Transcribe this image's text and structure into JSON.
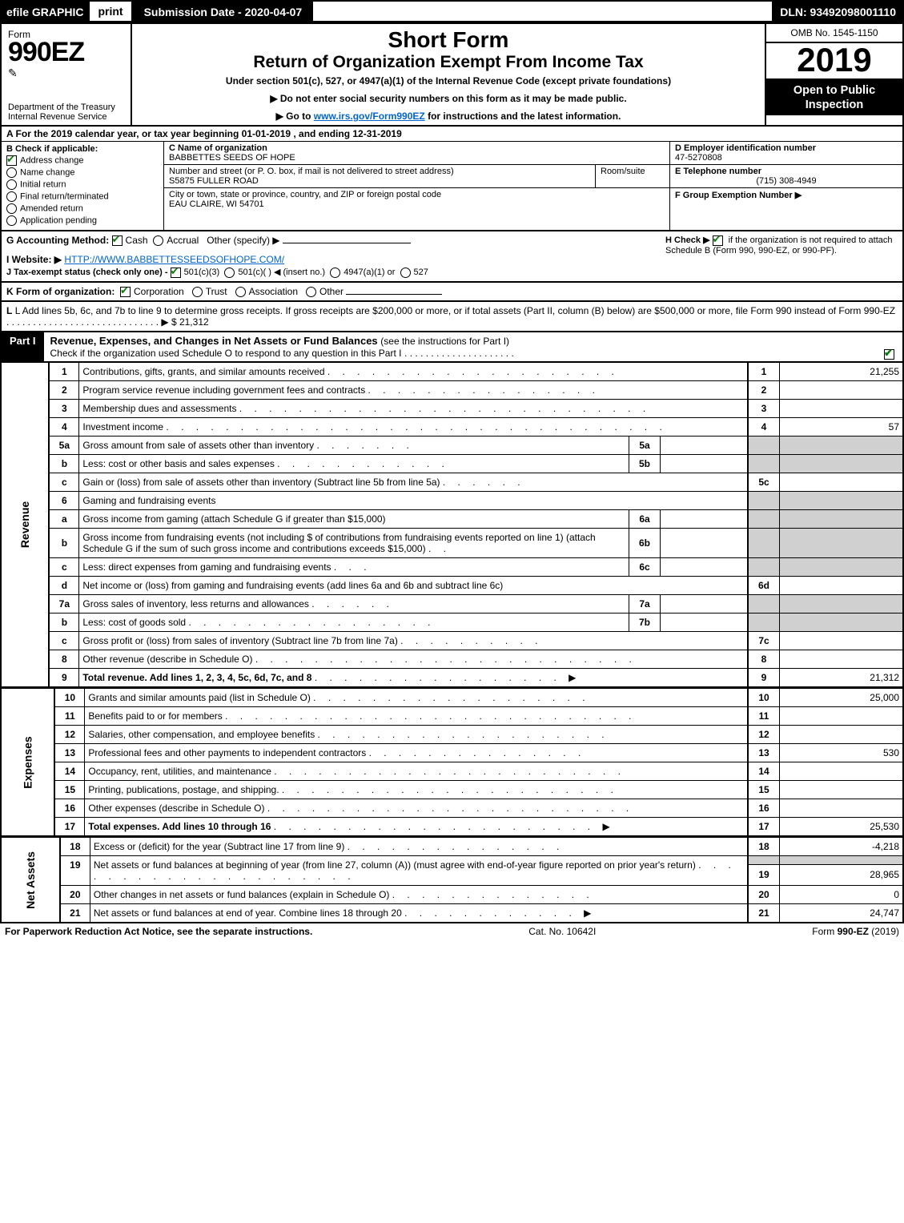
{
  "topbar": {
    "efile": "efile GRAPHIC",
    "print": "print",
    "subdate": "Submission Date - 2020-04-07",
    "dln": "DLN: 93492098001110"
  },
  "header": {
    "form_word": "Form",
    "form_num": "990EZ",
    "dept": "Department of the Treasury",
    "irs": "Internal Revenue Service",
    "title1": "Short Form",
    "title2": "Return of Organization Exempt From Income Tax",
    "subtitle": "Under section 501(c), 527, or 4947(a)(1) of the Internal Revenue Code (except private foundations)",
    "warn": "▶ Do not enter social security numbers on this form as it may be made public.",
    "goto_pre": "▶ Go to ",
    "goto_link": "www.irs.gov/Form990EZ",
    "goto_post": " for instructions and the latest information.",
    "omb": "OMB No. 1545-1150",
    "year": "2019",
    "open": "Open to Public Inspection"
  },
  "lineA": "A For the 2019 calendar year, or tax year beginning 01-01-2019 , and ending 12-31-2019",
  "boxB": {
    "title": "B Check if applicable:",
    "items": [
      {
        "label": "Address change",
        "checked": true,
        "type": "check"
      },
      {
        "label": "Name change",
        "checked": false,
        "type": "radio"
      },
      {
        "label": "Initial return",
        "checked": false,
        "type": "radio"
      },
      {
        "label": "Final return/terminated",
        "checked": false,
        "type": "radio"
      },
      {
        "label": "Amended return",
        "checked": false,
        "type": "radio"
      },
      {
        "label": "Application pending",
        "checked": false,
        "type": "radio"
      }
    ]
  },
  "boxC": {
    "c_label": "C Name of organization",
    "c_val": "BABBETTES SEEDS OF HOPE",
    "street_label": "Number and street (or P. O. box, if mail is not delivered to street address)",
    "street_val": "S5875 FULLER ROAD",
    "room_label": "Room/suite",
    "city_label": "City or town, state or province, country, and ZIP or foreign postal code",
    "city_val": "EAU CLAIRE, WI  54701"
  },
  "boxD": {
    "d_label": "D Employer identification number",
    "d_val": "47-5270808",
    "e_label": "E Telephone number",
    "e_val": "(715) 308-4949",
    "f_label": "F Group Exemption Number  ▶"
  },
  "midG": {
    "g": "G Accounting Method:",
    "cash": "Cash",
    "accrual": "Accrual",
    "other": "Other (specify) ▶",
    "h": "H  Check ▶",
    "h_tail": "if the organization is not required to attach Schedule B (Form 990, 990-EZ, or 990-PF).",
    "i": "I Website: ▶",
    "i_link": "HTTP://WWW.BABBETTESSEEDSOFHOPE.COM/",
    "j": "J Tax-exempt status (check only one) -",
    "j_501c3": "501(c)(3)",
    "j_501c": "501(c)(  ) ◀ (insert no.)",
    "j_4947": "4947(a)(1) or",
    "j_527": "527"
  },
  "lineK": {
    "pre": "K Form of organization:",
    "corp": "Corporation",
    "trust": "Trust",
    "assoc": "Association",
    "other": "Other"
  },
  "lineL": {
    "text": "L Add lines 5b, 6c, and 7b to line 9 to determine gross receipts. If gross receipts are $200,000 or more, or if total assets (Part II, column (B) below) are $500,000 or more, file Form 990 instead of Form 990-EZ",
    "dots": ". . . . . . . . . . . . . . . . . . . . . . . . . . . . . ▶",
    "val": "$ 21,312"
  },
  "partI": {
    "label": "Part I",
    "title": "Revenue, Expenses, and Changes in Net Assets or Fund Balances",
    "title_tail": "(see the instructions for Part I)",
    "sub": "Check if the organization used Schedule O to respond to any question in this Part I",
    "sub_dots": ". . . . . . . . . . . . . . . . . . . . ."
  },
  "rows": [
    {
      "side": "",
      "n": "1",
      "desc": "Contributions, gifts, grants, and similar amounts received",
      "dots": ". . . . . . . . . . . . . . . . . . . .",
      "ref": "1",
      "val": "21,255"
    },
    {
      "n": "2",
      "desc": "Program service revenue including government fees and contracts",
      "dots": ". . . . . . . . . . . . . . . .",
      "ref": "2",
      "val": ""
    },
    {
      "n": "3",
      "desc": "Membership dues and assessments",
      "dots": ". . . . . . . . . . . . . . . . . . . . . . . . . . . .",
      "ref": "3",
      "val": ""
    },
    {
      "n": "4",
      "desc": "Investment income",
      "dots": ". . . . . . . . . . . . . . . . . . . . . . . . . . . . . . . . . .",
      "ref": "4",
      "val": "57"
    },
    {
      "n": "5a",
      "desc": "Gross amount from sale of assets other than inventory",
      "dots": ". . . . . . .",
      "inner_lbl": "5a",
      "inner_val": "",
      "ref": "",
      "val": "",
      "shade": true
    },
    {
      "n": "b",
      "desc": "Less: cost or other basis and sales expenses",
      "dots": ". . . . . . . . . . . .",
      "inner_lbl": "5b",
      "inner_val": "",
      "ref": "",
      "val": "",
      "shade": true
    },
    {
      "n": "c",
      "desc": "Gain or (loss) from sale of assets other than inventory (Subtract line 5b from line 5a)",
      "dots": ". . . . . .",
      "ref": "5c",
      "val": ""
    },
    {
      "n": "6",
      "desc": "Gaming and fundraising events",
      "dots": "",
      "ref": "",
      "val": "",
      "shade": true,
      "no_inner": true
    },
    {
      "n": "a",
      "desc": "Gross income from gaming (attach Schedule G if greater than $15,000)",
      "dots": "",
      "inner_lbl": "6a",
      "inner_val": "",
      "ref": "",
      "val": "",
      "shade": true
    },
    {
      "n": "b",
      "desc": "Gross income from fundraising events (not including $                       of contributions from fundraising events reported on line 1) (attach Schedule G if the sum of such gross income and contributions exceeds $15,000)",
      "dots": ". .",
      "inner_lbl": "6b",
      "inner_val": "",
      "ref": "",
      "val": "",
      "shade": true,
      "multiline": true
    },
    {
      "n": "c",
      "desc": "Less: direct expenses from gaming and fundraising events",
      "dots": ". . .",
      "inner_lbl": "6c",
      "inner_val": "",
      "ref": "",
      "val": "",
      "shade": true
    },
    {
      "n": "d",
      "desc": "Net income or (loss) from gaming and fundraising events (add lines 6a and 6b and subtract line 6c)",
      "dots": "",
      "ref": "6d",
      "val": ""
    },
    {
      "n": "7a",
      "desc": "Gross sales of inventory, less returns and allowances",
      "dots": ". . . . . .",
      "inner_lbl": "7a",
      "inner_val": "",
      "ref": "",
      "val": "",
      "shade": true
    },
    {
      "n": "b",
      "desc": "Less: cost of goods sold",
      "dots": ". . . . . . . . . . . . . . . . .",
      "inner_lbl": "7b",
      "inner_val": "",
      "ref": "",
      "val": "",
      "shade": true
    },
    {
      "n": "c",
      "desc": "Gross profit or (loss) from sales of inventory (Subtract line 7b from line 7a)",
      "dots": ". . . . . . . . . .",
      "ref": "7c",
      "val": ""
    },
    {
      "n": "8",
      "desc": "Other revenue (describe in Schedule O)",
      "dots": ". . . . . . . . . . . . . . . . . . . . . . . . . .",
      "ref": "8",
      "val": ""
    },
    {
      "n": "9",
      "desc": "Total revenue. Add lines 1, 2, 3, 4, 5c, 6d, 7c, and 8",
      "dots": ". . . . . . . . . . . . . . . . .   ▶",
      "ref": "9",
      "val": "21,312",
      "bold": true
    }
  ],
  "exp_rows": [
    {
      "n": "10",
      "desc": "Grants and similar amounts paid (list in Schedule O)",
      "dots": ". . . . . . . . . . . . . . . . . . .",
      "ref": "10",
      "val": "25,000"
    },
    {
      "n": "11",
      "desc": "Benefits paid to or for members",
      "dots": ". . . . . . . . . . . . . . . . . . . . . . . . . . . .",
      "ref": "11",
      "val": ""
    },
    {
      "n": "12",
      "desc": "Salaries, other compensation, and employee benefits",
      "dots": ". . . . . . . . . . . . . . . . . . . .",
      "ref": "12",
      "val": ""
    },
    {
      "n": "13",
      "desc": "Professional fees and other payments to independent contractors",
      "dots": ". . . . . . . . . . . . . . .",
      "ref": "13",
      "val": "530"
    },
    {
      "n": "14",
      "desc": "Occupancy, rent, utilities, and maintenance",
      "dots": ". . . . . . . . . . . . . . . . . . . . . . . .",
      "ref": "14",
      "val": ""
    },
    {
      "n": "15",
      "desc": "Printing, publications, postage, and shipping.",
      "dots": ". . . . . . . . . . . . . . . . . . . . . . .",
      "ref": "15",
      "val": ""
    },
    {
      "n": "16",
      "desc": "Other expenses (describe in Schedule O)",
      "dots": ". . . . . . . . . . . . . . . . . . . . . . . . .",
      "ref": "16",
      "val": ""
    },
    {
      "n": "17",
      "desc": "Total expenses. Add lines 10 through 16",
      "dots": ". . . . . . . . . . . . . . . . . . . . . .   ▶",
      "ref": "17",
      "val": "25,530",
      "bold": true
    }
  ],
  "net_rows": [
    {
      "n": "18",
      "desc": "Excess or (deficit) for the year (Subtract line 17 from line 9)",
      "dots": ". . . . . . . . . . . . . . .",
      "ref": "18",
      "val": "-4,218"
    },
    {
      "n": "19",
      "desc": "Net assets or fund balances at beginning of year (from line 27, column (A)) (must agree with end-of-year figure reported on prior year's return)",
      "dots": ". . . . . . . . . . . . . . . . . . . . .",
      "ref": "19",
      "val": "28,965",
      "multiline": true,
      "shade_top": true
    },
    {
      "n": "20",
      "desc": "Other changes in net assets or fund balances (explain in Schedule O)",
      "dots": ". . . . . . . . . . . . . .",
      "ref": "20",
      "val": "0"
    },
    {
      "n": "21",
      "desc": "Net assets or fund balances at end of year. Combine lines 18 through 20",
      "dots": ". . . . . . . . . . . .  ▶",
      "ref": "21",
      "val": "24,747"
    }
  ],
  "side_labels": {
    "rev": "Revenue",
    "exp": "Expenses",
    "net": "Net Assets"
  },
  "footer": {
    "left": "For Paperwork Reduction Act Notice, see the separate instructions.",
    "mid": "Cat. No. 10642I",
    "right": "Form 990-EZ (2019)",
    "right_bold": "990-EZ"
  }
}
